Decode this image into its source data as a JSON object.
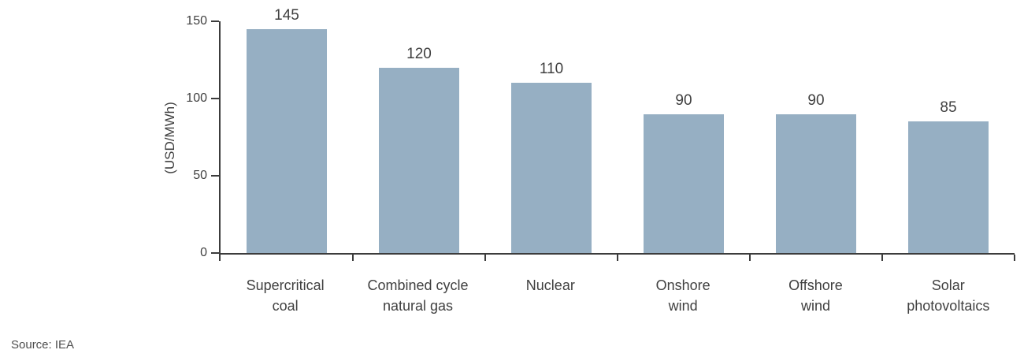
{
  "chart_data": {
    "type": "bar",
    "categories": [
      "Supercritical\ncoal",
      "Combined cycle\nnatural gas",
      "Nuclear",
      "Onshore\nwind",
      "Offshore\nwind",
      "Solar\nphotovoltaics"
    ],
    "values": [
      145,
      120,
      110,
      90,
      90,
      85
    ],
    "title": "",
    "xlabel": "",
    "ylabel": "(USD/MWh)",
    "ylim": [
      0,
      150
    ],
    "yticks": [
      0,
      50,
      100,
      150
    ],
    "grid": false,
    "legend": null,
    "bar_color": "#96afc3"
  },
  "source": "Source: IEA",
  "colors": {
    "bar": "#96afc3",
    "axis": "#3c3c3c",
    "text": "#404040",
    "muted": "#4d4d4d",
    "background": "#ffffff"
  }
}
